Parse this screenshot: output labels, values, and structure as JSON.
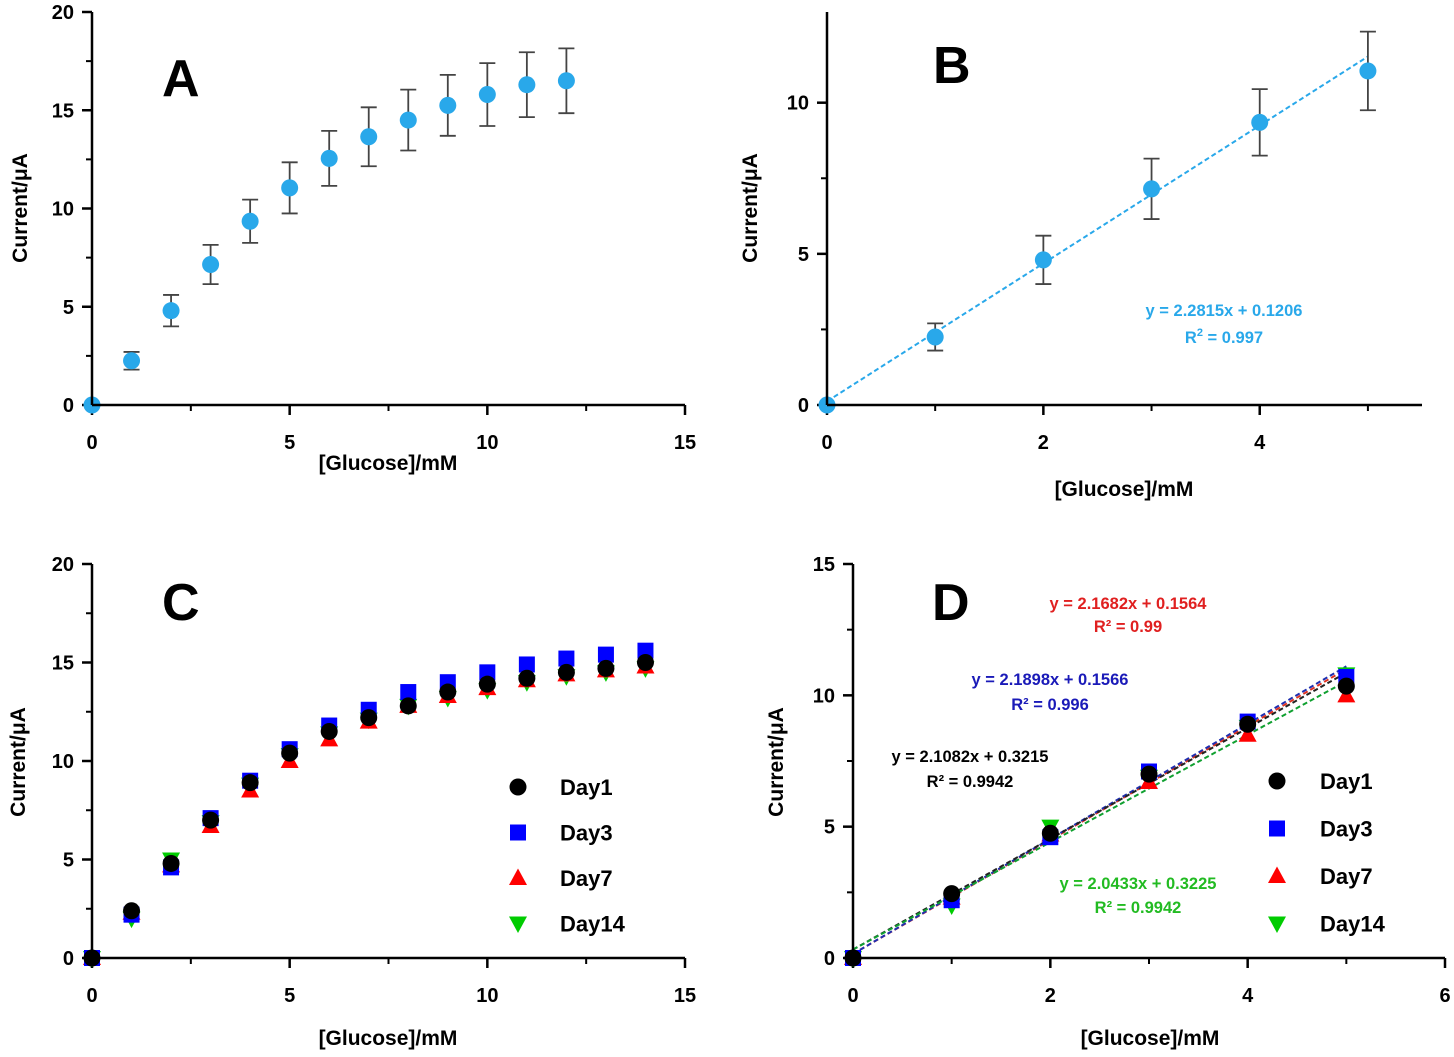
{
  "colors": {
    "point_blue": "#29a8ea",
    "day1": "#000000",
    "day3": "#0000ff",
    "day7": "#ff0000",
    "day14": "#00cc00",
    "errorbar": "#444444",
    "fit_b": "#29a8ea",
    "fit_d_day1": "#222222",
    "fit_d_day3": "#1f2fb0",
    "fit_d_day7": "#e03020",
    "fit_d_day14": "#10a030",
    "eq_d_day1": "#000000",
    "eq_d_day3": "#1a1ab8",
    "eq_d_day7": "#e02020",
    "eq_d_day14": "#22bb22"
  },
  "chart_data": [
    {
      "id": "A",
      "type": "scatter",
      "panel_label": "A",
      "xlabel": "[Glucose]/mM",
      "ylabel": "Current/μA",
      "xlim": [
        0,
        15
      ],
      "ylim": [
        0,
        20
      ],
      "xticks": [
        "0",
        "5",
        "10",
        "15"
      ],
      "yticks": [
        "0",
        "5",
        "10",
        "15",
        "20"
      ],
      "series": [
        {
          "name": "Current",
          "marker": "circle",
          "color": "#29a8ea",
          "x": [
            0,
            1,
            2,
            3,
            4,
            5,
            6,
            7,
            8,
            9,
            10,
            11,
            12
          ],
          "y": [
            0,
            2.25,
            4.8,
            7.15,
            9.35,
            11.05,
            12.55,
            13.65,
            14.5,
            15.25,
            15.8,
            16.3,
            16.5
          ],
          "err": [
            0,
            0.45,
            0.8,
            1.0,
            1.1,
            1.3,
            1.4,
            1.5,
            1.55,
            1.55,
            1.6,
            1.65,
            1.65
          ]
        }
      ]
    },
    {
      "id": "B",
      "type": "scatter",
      "panel_label": "B",
      "xlabel": "[Glucose]/mM",
      "ylabel": "Current/μA",
      "xlim": [
        0,
        5.5
      ],
      "ylim": [
        0,
        13
      ],
      "xticks": [
        "0",
        "2",
        "4"
      ],
      "yticks": [
        "0",
        "5",
        "10"
      ],
      "series": [
        {
          "name": "Current",
          "marker": "circle",
          "color": "#29a8ea",
          "x": [
            0,
            1,
            2,
            3,
            4,
            5
          ],
          "y": [
            0,
            2.25,
            4.8,
            7.15,
            9.35,
            11.05
          ],
          "err": [
            0,
            0.45,
            0.8,
            1.0,
            1.1,
            1.3
          ]
        }
      ],
      "fits": [
        {
          "slope": 2.2815,
          "intercept": 0.1206,
          "x_range": [
            0,
            5
          ],
          "color": "#29a8ea",
          "equation": "y = 2.2815x + 0.1206",
          "r2_prefix": "R",
          "r2_sup": "2",
          "r2_value": " = 0.997"
        }
      ]
    },
    {
      "id": "C",
      "type": "scatter",
      "panel_label": "C",
      "xlabel": "[Glucose]/mM",
      "ylabel": "Current/μA",
      "xlim": [
        0,
        15
      ],
      "ylim": [
        0,
        20
      ],
      "xticks": [
        "0",
        "5",
        "10",
        "15"
      ],
      "yticks": [
        "0",
        "5",
        "10",
        "15",
        "20"
      ],
      "legend": [
        "Day1",
        "Day3",
        "Day7",
        "Day14"
      ],
      "series": [
        {
          "name": "Day1",
          "marker": "circle",
          "color": "#000000",
          "x": [
            0,
            1,
            2,
            3,
            4,
            5,
            6,
            7,
            8,
            9,
            10,
            11,
            12,
            13,
            14
          ],
          "y": [
            0,
            2.4,
            4.8,
            7.0,
            8.9,
            10.4,
            11.5,
            12.2,
            12.8,
            13.5,
            13.9,
            14.2,
            14.5,
            14.7,
            15.0
          ]
        },
        {
          "name": "Day3",
          "marker": "square",
          "color": "#0000ff",
          "x": [
            0,
            1,
            2,
            3,
            4,
            5,
            6,
            7,
            8,
            9,
            10,
            11,
            12,
            13,
            14
          ],
          "y": [
            0,
            2.2,
            4.6,
            7.1,
            9.0,
            10.6,
            11.8,
            12.6,
            13.5,
            14.0,
            14.5,
            14.9,
            15.2,
            15.4,
            15.6
          ]
        },
        {
          "name": "Day7",
          "marker": "triangle-up",
          "color": "#ff0000",
          "x": [
            0,
            1,
            2,
            3,
            4,
            5,
            6,
            7,
            8,
            9,
            10,
            11,
            12,
            13,
            14
          ],
          "y": [
            0,
            2.3,
            4.7,
            6.7,
            8.5,
            10.0,
            11.1,
            12.0,
            12.8,
            13.3,
            13.7,
            14.1,
            14.4,
            14.6,
            14.8
          ]
        },
        {
          "name": "Day14",
          "marker": "triangle-down",
          "color": "#00cc00",
          "x": [
            0,
            1,
            2,
            3,
            4,
            5,
            6,
            7,
            8,
            9,
            10,
            11,
            12,
            13,
            14
          ],
          "y": [
            0,
            2.0,
            5.0,
            6.9,
            8.8,
            10.3,
            11.4,
            12.1,
            12.8,
            13.2,
            13.6,
            14.0,
            14.3,
            14.5,
            14.7
          ]
        }
      ]
    },
    {
      "id": "D",
      "type": "scatter",
      "panel_label": "D",
      "xlabel": "[Glucose]/mM",
      "ylabel": "Current/μA",
      "xlim": [
        0,
        6
      ],
      "ylim": [
        0,
        15
      ],
      "xticks": [
        "0",
        "2",
        "4",
        "6"
      ],
      "yticks": [
        "0",
        "5",
        "10",
        "15"
      ],
      "legend": [
        "Day1",
        "Day3",
        "Day7",
        "Day14"
      ],
      "series": [
        {
          "name": "Day1",
          "marker": "circle",
          "color": "#000000",
          "x": [
            0,
            1,
            2,
            3,
            4,
            5
          ],
          "y": [
            0,
            2.45,
            4.75,
            7.0,
            8.9,
            10.35
          ]
        },
        {
          "name": "Day3",
          "marker": "square",
          "color": "#0000ff",
          "x": [
            0,
            1,
            2,
            3,
            4,
            5
          ],
          "y": [
            0,
            2.2,
            4.6,
            7.1,
            9.0,
            10.7
          ]
        },
        {
          "name": "Day7",
          "marker": "triangle-up",
          "color": "#ff0000",
          "x": [
            0,
            1,
            2,
            3,
            4,
            5
          ],
          "y": [
            0,
            2.3,
            4.7,
            6.7,
            8.5,
            10.0
          ]
        },
        {
          "name": "Day14",
          "marker": "triangle-down",
          "color": "#00cc00",
          "x": [
            0,
            1,
            2,
            3,
            4,
            5
          ],
          "y": [
            0,
            2.0,
            5.0,
            6.9,
            8.8,
            10.8
          ]
        }
      ],
      "fits": [
        {
          "name": "Day7",
          "slope": 2.1682,
          "intercept": 0.1564,
          "x_range": [
            0,
            5
          ],
          "color": "#e03020",
          "equation": "y = 2.1682x + 0.1564",
          "r2_text": "R² = 0.99"
        },
        {
          "name": "Day3",
          "slope": 2.1898,
          "intercept": 0.1566,
          "x_range": [
            0,
            5
          ],
          "color": "#1f2fb0",
          "equation": "y = 2.1898x + 0.1566",
          "r2_text": "R² = 0.996"
        },
        {
          "name": "Day1",
          "slope": 2.1082,
          "intercept": 0.3215,
          "x_range": [
            0,
            5
          ],
          "color": "#222222",
          "equation": "y = 2.1082x + 0.3215",
          "r2_text": "R² = 0.9942"
        },
        {
          "name": "Day14",
          "slope": 2.0433,
          "intercept": 0.3225,
          "x_range": [
            0,
            5
          ],
          "color": "#10a030",
          "equation": "y = 2.0433x + 0.3225",
          "r2_text": "R² = 0.9942"
        }
      ]
    }
  ]
}
